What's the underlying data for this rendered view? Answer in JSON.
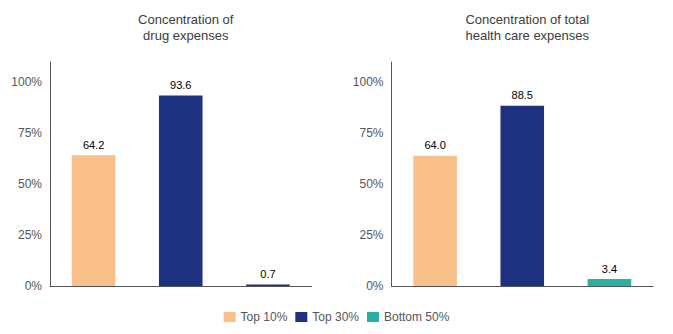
{
  "chart_data": [
    {
      "type": "bar",
      "title": "Concentration of\ndrug expenses",
      "categories": [
        "Top 10%",
        "Top 30%",
        "Bottom 50%"
      ],
      "values": [
        64.2,
        93.6,
        0.7
      ],
      "colors": [
        "#F9C189",
        "#1E3080",
        "#1E3080"
      ],
      "ylim": [
        0,
        110
      ],
      "yticks": [
        {
          "value": 0,
          "label": "0%"
        },
        {
          "value": 25,
          "label": "25%"
        },
        {
          "value": 50,
          "label": "50%"
        },
        {
          "value": 75,
          "label": "75%"
        },
        {
          "value": 100,
          "label": "100%"
        }
      ],
      "grid": false,
      "data_labels": true,
      "tick_labels": "y"
    },
    {
      "type": "bar",
      "title": "Concentration of total\nhealth care expenses",
      "categories": [
        "Top 10%",
        "Top 30%",
        "Bottom 50%"
      ],
      "values": [
        64.0,
        88.5,
        3.4
      ],
      "value_labels": [
        "64.0",
        "88.5",
        "3.4"
      ],
      "colors": [
        "#F9C189",
        "#1E3080",
        "#2AAFA0"
      ],
      "ylim": [
        0,
        110
      ],
      "yticks": [
        {
          "value": 0,
          "label": "0%"
        },
        {
          "value": 25,
          "label": "25%"
        },
        {
          "value": 50,
          "label": "50%"
        },
        {
          "value": 75,
          "label": "75%"
        },
        {
          "value": 100,
          "label": "100%"
        }
      ],
      "grid": false,
      "data_labels": true,
      "tick_labels": "y",
      "legend": "bottom"
    }
  ]
}
